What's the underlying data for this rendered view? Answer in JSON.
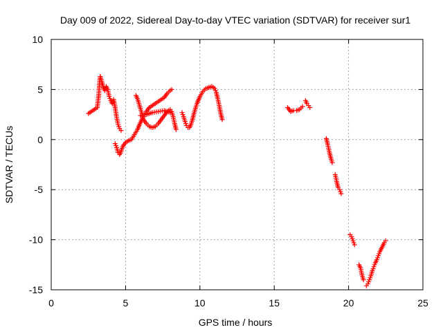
{
  "chart_data": {
    "type": "scatter",
    "title": "Day 009 of 2022, Sidereal Day-to-day VTEC variation (SDTVAR) for receiver sur1",
    "xlabel": "GPS time / hours",
    "ylabel": "SDTVAR / TECUs",
    "xlim": [
      0,
      25
    ],
    "ylim": [
      -15,
      10
    ],
    "xticks": [
      "0",
      "5",
      "10",
      "15",
      "20",
      "25"
    ],
    "yticks": [
      "-15",
      "-10",
      "-5",
      "0",
      "5",
      "10"
    ],
    "grid": true,
    "marker": "plus",
    "color": "#ff0000",
    "segments": [
      {
        "x": [
          2.5,
          2.7,
          2.9,
          3.1,
          3.2,
          3.25,
          3.3
        ],
        "y": [
          2.6,
          2.8,
          3.0,
          3.2,
          4.5,
          5.8,
          6.3
        ]
      },
      {
        "x": [
          3.3,
          3.4,
          3.5,
          3.6,
          3.7,
          3.8,
          3.9,
          4.0,
          4.1,
          4.2,
          4.3,
          4.4,
          4.5,
          4.6,
          4.7
        ],
        "y": [
          6.3,
          5.8,
          5.2,
          4.9,
          5.3,
          5.0,
          4.3,
          3.9,
          3.6,
          4.0,
          3.2,
          2.2,
          1.5,
          1.1,
          0.9
        ]
      },
      {
        "x": [
          4.3,
          4.4,
          4.5,
          4.6,
          4.7,
          4.8,
          5.0,
          5.2,
          5.4,
          5.6,
          5.8,
          6.0,
          6.2,
          6.4,
          6.6,
          6.8,
          7.0,
          7.2,
          7.4,
          7.6,
          7.8,
          8.0,
          8.1
        ],
        "y": [
          -0.4,
          -0.8,
          -1.3,
          -1.5,
          -1.2,
          -0.7,
          -0.3,
          -0.1,
          0.0,
          0.5,
          1.0,
          1.7,
          2.3,
          2.8,
          3.2,
          3.4,
          3.6,
          3.8,
          4.0,
          4.2,
          4.6,
          4.9,
          5.0
        ]
      },
      {
        "x": [
          5.7,
          5.8,
          5.9,
          6.0,
          6.1,
          6.2,
          6.4,
          6.6,
          6.8,
          7.0,
          7.2,
          7.4,
          7.6,
          7.8,
          8.0,
          8.1,
          8.2,
          8.3,
          8.4
        ],
        "y": [
          4.4,
          4.1,
          3.6,
          3.1,
          2.6,
          2.0,
          1.6,
          1.3,
          1.2,
          1.3,
          1.6,
          2.0,
          2.4,
          2.8,
          3.0,
          2.8,
          2.3,
          1.6,
          1.0
        ]
      },
      {
        "x": [
          6.0,
          6.4,
          6.8,
          7.2,
          7.6,
          8.0
        ],
        "y": [
          2.4,
          2.5,
          2.7,
          2.8,
          2.9,
          2.7
        ]
      },
      {
        "x": [
          8.8,
          8.9,
          9.0,
          9.1,
          9.2,
          9.3,
          9.4,
          9.5,
          9.6,
          9.7,
          9.8,
          10.0,
          10.2,
          10.4,
          10.6,
          10.8,
          11.0,
          11.1,
          11.2,
          11.3,
          11.4,
          11.5
        ],
        "y": [
          2.7,
          2.3,
          1.8,
          1.4,
          1.2,
          1.2,
          1.5,
          2.0,
          2.6,
          3.1,
          3.6,
          4.3,
          4.8,
          5.1,
          5.2,
          5.3,
          5.1,
          4.7,
          4.1,
          3.4,
          2.6,
          2.0
        ]
      },
      {
        "x": [
          15.9,
          16.1,
          16.3,
          16.5,
          16.7,
          16.9
        ],
        "y": [
          3.2,
          2.8,
          2.9,
          2.9,
          3.0,
          3.3
        ]
      },
      {
        "x": [
          17.1,
          17.2,
          17.3,
          17.4
        ],
        "y": [
          3.9,
          3.6,
          3.4,
          3.2
        ]
      },
      {
        "x": [
          18.5,
          18.6,
          18.7,
          18.8,
          18.9
        ],
        "y": [
          0.1,
          -0.5,
          -1.2,
          -1.8,
          -2.3
        ]
      },
      {
        "x": [
          19.1,
          19.2,
          19.3,
          19.4,
          19.5
        ],
        "y": [
          -3.5,
          -4.2,
          -4.8,
          -5.0,
          -5.4
        ]
      },
      {
        "x": [
          20.1,
          20.2,
          20.3,
          20.4
        ],
        "y": [
          -9.5,
          -9.7,
          -10.1,
          -10.5
        ]
      },
      {
        "x": [
          20.7,
          20.8,
          20.9,
          21.0
        ],
        "y": [
          -12.5,
          -12.8,
          -13.5,
          -14.0
        ]
      },
      {
        "x": [
          21.2,
          21.3,
          21.4,
          21.5,
          21.6,
          21.7,
          21.8,
          21.9,
          22.0,
          22.1,
          22.2,
          22.3,
          22.4,
          22.5
        ],
        "y": [
          -14.6,
          -14.4,
          -14.0,
          -13.6,
          -13.1,
          -12.7,
          -12.3,
          -12.0,
          -11.6,
          -11.2,
          -10.9,
          -10.6,
          -10.3,
          -10.1
        ]
      }
    ]
  }
}
